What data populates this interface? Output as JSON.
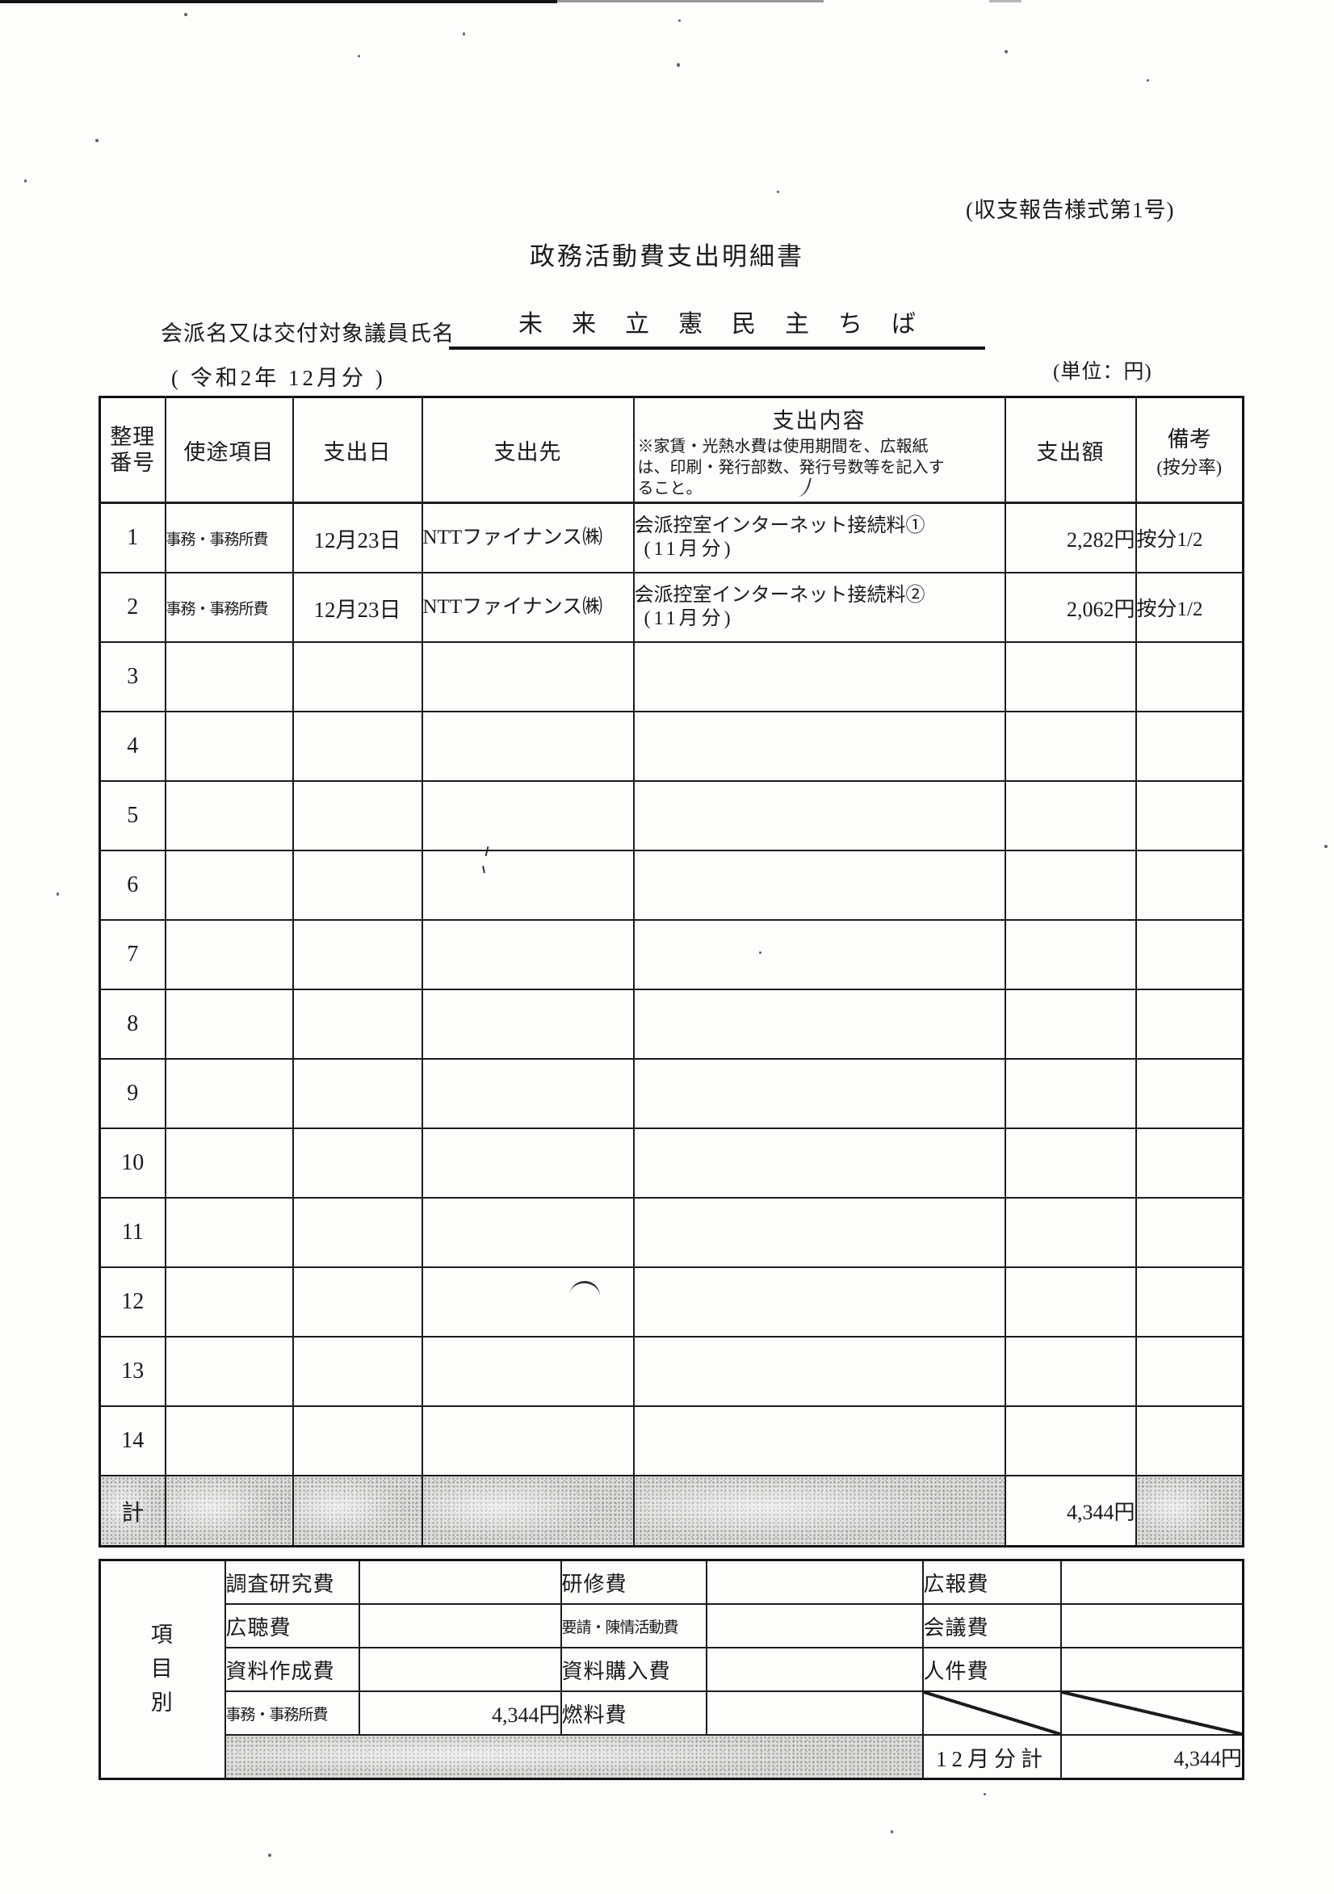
{
  "page": {
    "form_number": "(収支報告様式第1号)",
    "title": "政務活動費支出明細書",
    "faction_label": "会派名又は交付対象議員氏名",
    "faction_name": "未来立憲民主ちば",
    "period_line": "(  令和2年  12月分  )",
    "unit_note": "(単位：円)"
  },
  "main_table": {
    "headers": {
      "no": "整理\n番号",
      "category": "使途項目",
      "date": "支出日",
      "payee": "支出先",
      "content_title": "支出内容",
      "content_note": "※家賃・光熱水費は使用期間を、広報紙は、印刷・発行部数、発行号数等を記入すること。",
      "amount": "支出額",
      "remarks_title": "備考",
      "remarks_sub": "(按分率)"
    },
    "rows": [
      {
        "no": "1",
        "category": "事務・事務所費",
        "date": "12月23日",
        "payee": "NTTファイナンス㈱",
        "desc": "会派控室インターネット接続料①",
        "period": "(11月分)",
        "amount": "2,282円",
        "remarks": "按分1/2"
      },
      {
        "no": "2",
        "category": "事務・事務所費",
        "date": "12月23日",
        "payee": "NTTファイナンス㈱",
        "desc": "会派控室インターネット接続料②",
        "period": "(11月分)",
        "amount": "2,062円",
        "remarks": "按分1/2"
      },
      {
        "no": "3"
      },
      {
        "no": "4"
      },
      {
        "no": "5"
      },
      {
        "no": "6"
      },
      {
        "no": "7"
      },
      {
        "no": "8"
      },
      {
        "no": "9"
      },
      {
        "no": "10"
      },
      {
        "no": "11"
      },
      {
        "no": "12"
      },
      {
        "no": "13"
      },
      {
        "no": "14"
      }
    ],
    "total": {
      "label": "計",
      "amount": "4,344円"
    }
  },
  "breakdown": {
    "side_label": "項\n目\n別",
    "rows": [
      {
        "c1": "調査研究費",
        "v1": "",
        "c2": "研修費",
        "v2": "",
        "c3": "広報費",
        "v3": ""
      },
      {
        "c1": "広聴費",
        "v1": "",
        "c2": "要請・陳情活動費",
        "v2": "",
        "c3": "会議費",
        "v3": ""
      },
      {
        "c1": "資料作成費",
        "v1": "",
        "c2": "資料購入費",
        "v2": "",
        "c3": "人件費",
        "v3": ""
      },
      {
        "c1": "事務・事務所費",
        "v1": "4,344円",
        "c2": "燃料費",
        "v2": ""
      }
    ],
    "total_label": "12月分計",
    "total_value": "4,344円"
  }
}
